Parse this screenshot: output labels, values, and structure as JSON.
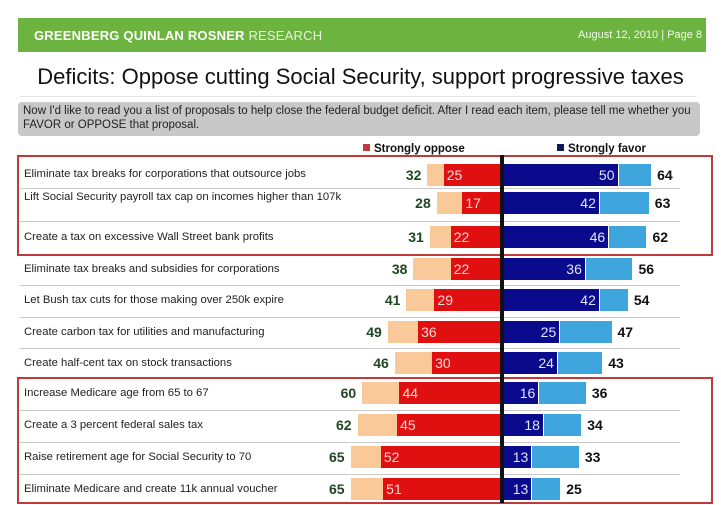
{
  "header": {
    "brand_bold": "GREENBERG QUINLAN ROSNER",
    "brand_light": "RESEARCH",
    "date_page": "August 12, 2010  |  Page 8"
  },
  "title": "Deficits: Oppose cutting Social Security, support progressive taxes",
  "question": "Now I'd like to read you a list of proposals to help close the federal budget deficit. After I read each item, please tell me whether you FAVOR or OPPOSE that proposal.",
  "colors": {
    "header_green": "#6db33f",
    "strongly_oppose": "#e01010",
    "total_oppose": "#f9c99a",
    "strongly_favor": "#0a0a8c",
    "total_favor": "#3ea6dd",
    "highlight_box": "#c0393b",
    "total_oppose_text": "#1e4620"
  },
  "chart_data": {
    "type": "bar",
    "orientation": "horizontal-diverging",
    "title": "Deficits: Oppose cutting Social Security, support progressive taxes",
    "legend": [
      {
        "name": "Strongly oppose",
        "color": "#e01010"
      },
      {
        "name": "Strongly favor",
        "color": "#0a0a8c"
      }
    ],
    "legend_placement": "top",
    "categories": [
      "Eliminate tax breaks for corporations that outsource jobs",
      "Lift Social Security payroll tax cap on incomes higher than 107k",
      "Create a tax on excessive Wall Street bank profits",
      "Eliminate tax breaks and subsidies for corporations",
      "Let Bush tax cuts for those making over 250k expire",
      "Create carbon tax for utilities and manufacturing",
      "Create half-cent tax on stock transactions",
      "Increase Medicare age from 65 to 67",
      "Create a 3 percent federal sales tax",
      "Raise retirement age for Social Security to 70",
      "Eliminate Medicare and create 11k annual voucher"
    ],
    "series": [
      {
        "name": "Total oppose",
        "values": [
          32,
          28,
          31,
          38,
          41,
          49,
          46,
          60,
          62,
          65,
          65
        ]
      },
      {
        "name": "Strongly oppose",
        "values": [
          25,
          17,
          22,
          22,
          29,
          36,
          30,
          44,
          45,
          52,
          51
        ]
      },
      {
        "name": "Strongly favor",
        "values": [
          50,
          42,
          46,
          36,
          42,
          25,
          24,
          16,
          18,
          13,
          13
        ]
      },
      {
        "name": "Total favor",
        "values": [
          64,
          63,
          62,
          56,
          54,
          47,
          43,
          36,
          34,
          33,
          25
        ]
      }
    ],
    "highlight_groups": [
      [
        0,
        1,
        2
      ],
      [
        7,
        8,
        9,
        10
      ]
    ],
    "xlim": [
      -70,
      70
    ],
    "grid": false
  }
}
